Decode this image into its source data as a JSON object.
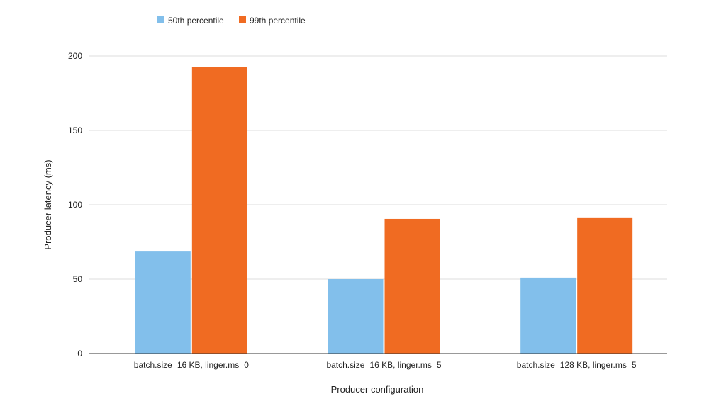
{
  "chart_data": {
    "type": "bar",
    "title": "",
    "xlabel": "Producer configuration",
    "ylabel": "Producer latency (ms)",
    "categories": [
      "batch.size=16 KB, linger.ms=0",
      "batch.size=16 KB, linger.ms=5",
      "batch.size=128 KB, linger.ms=5"
    ],
    "series": [
      {
        "name": "50th percentile",
        "color": "#82bfeb",
        "values": [
          69,
          50,
          51
        ]
      },
      {
        "name": "99th percentile",
        "color": "#f06b22",
        "values": [
          192.5,
          90.5,
          91.5
        ]
      }
    ],
    "ylim": [
      0,
      200
    ],
    "yticks": [
      0,
      50,
      100,
      150,
      200
    ],
    "grid": true,
    "legend": "top-center"
  }
}
